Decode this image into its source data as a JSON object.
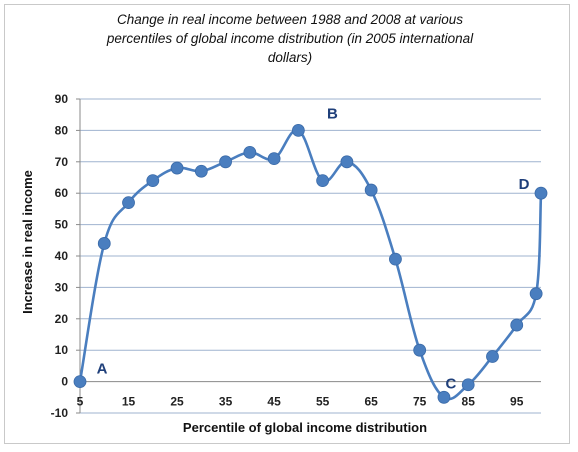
{
  "chart_data": {
    "type": "line",
    "title_lines": [
      "Change in real income between 1988 and 2008 at various",
      "percentiles of global income distribution  (in 2005 international",
      "dollars)"
    ],
    "xlabel": "Percentile of global income distribution",
    "ylabel": "Increase in real income",
    "xlim": [
      5,
      100
    ],
    "ylim": [
      -10,
      90
    ],
    "x_ticks": [
      5,
      15,
      25,
      35,
      45,
      55,
      65,
      75,
      85,
      95
    ],
    "y_ticks": [
      -10,
      0,
      10,
      20,
      30,
      40,
      50,
      60,
      70,
      80,
      90
    ],
    "grid": "horizontal",
    "series": [
      {
        "color": "#4a7ebf",
        "x": [
          5,
          10,
          15,
          20,
          25,
          30,
          35,
          40,
          45,
          50,
          55,
          60,
          65,
          70,
          75,
          80,
          85,
          90,
          95,
          99,
          100
        ],
        "y": [
          0,
          44,
          57,
          64,
          68,
          67,
          70,
          73,
          71,
          80,
          64,
          70,
          61,
          39,
          10,
          -5,
          -1,
          8,
          18,
          28,
          60
        ]
      }
    ],
    "annotations": [
      {
        "label": "A",
        "x": 5,
        "y": 0
      },
      {
        "label": "B",
        "x": 50,
        "y": 80
      },
      {
        "label": "C",
        "x": 80,
        "y": -5
      },
      {
        "label": "D",
        "x": 100,
        "y": 60
      }
    ]
  }
}
